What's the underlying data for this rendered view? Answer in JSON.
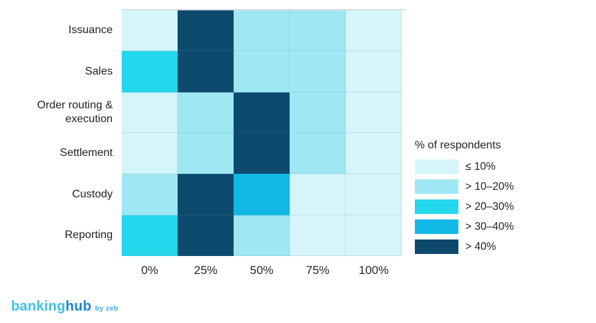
{
  "chart_data": {
    "type": "heatmap",
    "title": "",
    "xlabel": "",
    "ylabel": "",
    "rows": [
      "Issuance",
      "Sales",
      "Order routing & execution",
      "Settlement",
      "Custody",
      "Reporting"
    ],
    "columns": [
      "0%",
      "25%",
      "50%",
      "75%",
      "100%"
    ],
    "legend": {
      "title": "% of respondents",
      "entries": [
        {
          "label": "≤ 10%",
          "color": "#d6f5fb"
        },
        {
          "label": "> 10–20%",
          "color": "#9fe8f3"
        },
        {
          "label": "> 20–30%",
          "color": "#24d7ec"
        },
        {
          "label": "> 30–40%",
          "color": "#12b9e7"
        },
        {
          "label": "> 40%",
          "color": "#0d4a6e"
        }
      ]
    },
    "cells": [
      [
        "≤ 10%",
        "> 40%",
        "> 10–20%",
        "> 10–20%",
        "≤ 10%"
      ],
      [
        "> 20–30%",
        "> 40%",
        "> 10–20%",
        "> 10–20%",
        "≤ 10%"
      ],
      [
        "≤ 10%",
        "> 10–20%",
        "> 40%",
        "> 10–20%",
        "≤ 10%"
      ],
      [
        "≤ 10%",
        "> 10–20%",
        "> 40%",
        "> 10–20%",
        "≤ 10%"
      ],
      [
        "> 10–20%",
        "> 40%",
        "> 30–40%",
        "≤ 10%",
        "≤ 10%"
      ],
      [
        "> 20–30%",
        "> 40%",
        "> 10–20%",
        "≤ 10%",
        "≤ 10%"
      ]
    ],
    "layout": {
      "legend_position": "right",
      "grid": "on"
    }
  },
  "footer": {
    "logo": {
      "part1": "banking",
      "part2": "hub",
      "suffix": "by zeb",
      "part1_color": "#3ec1e9",
      "part2_color": "#1d88cb",
      "suffix_color": "#4aade0"
    }
  }
}
